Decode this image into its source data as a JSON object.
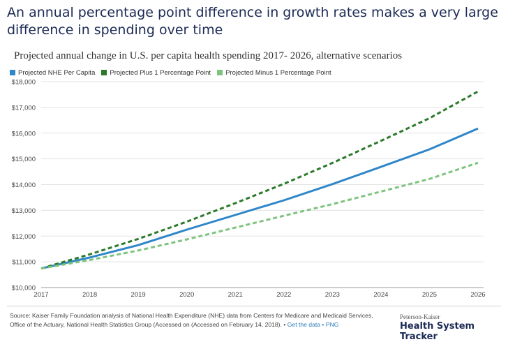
{
  "header": {
    "headline": "An annual percentage point difference in growth rates makes a very large difference in spending over time"
  },
  "chart_data": {
    "type": "line",
    "title": "Projected annual change in U.S. per capita health spending 2017- 2026, alternative scenarios",
    "x": [
      2017,
      2018,
      2019,
      2020,
      2021,
      2022,
      2023,
      2024,
      2025,
      2026
    ],
    "ylim": [
      10000,
      18000
    ],
    "yticks": [
      10000,
      11000,
      12000,
      13000,
      14000,
      15000,
      16000,
      17000,
      18000
    ],
    "ytick_labels": [
      "$10,000",
      "$11,000",
      "$12,000",
      "$13,000",
      "$14,000",
      "$15,000",
      "$16,000",
      "$17,000",
      "$18,000"
    ],
    "grid": true,
    "legend_position": "top-left",
    "series": [
      {
        "name": "Projected NHE Per Capita",
        "color": "#2f86c8",
        "style": "solid",
        "values": [
          10740,
          11170,
          11650,
          12250,
          12820,
          13390,
          14020,
          14690,
          15370,
          16180
        ]
      },
      {
        "name": "Projected Plus 1 Percentage Point",
        "color": "#2a7a2a",
        "style": "dashed",
        "values": [
          10740,
          11290,
          11890,
          12560,
          13280,
          14030,
          14840,
          15700,
          16580,
          17620
        ]
      },
      {
        "name": "Projected Minus 1 Percentage Point",
        "color": "#7ec47e",
        "style": "dashed",
        "values": [
          10740,
          11070,
          11440,
          11870,
          12330,
          12790,
          13240,
          13730,
          14220,
          14850
        ]
      }
    ]
  },
  "footer": {
    "source_text": "Source: Kaiser Family Foundation analysis of National Health Expenditure (NHE) data from Centers for Medicare and Medicaid Services, Office of the Actuary, National Health Statistics Group (Accessed on (Accessed on February 14, 2018). • ",
    "get_data_link": "Get the data",
    "separator": " • ",
    "png_link": "PNG",
    "brand_top": "Peterson-Kaiser",
    "brand_main": "Health System Tracker"
  }
}
